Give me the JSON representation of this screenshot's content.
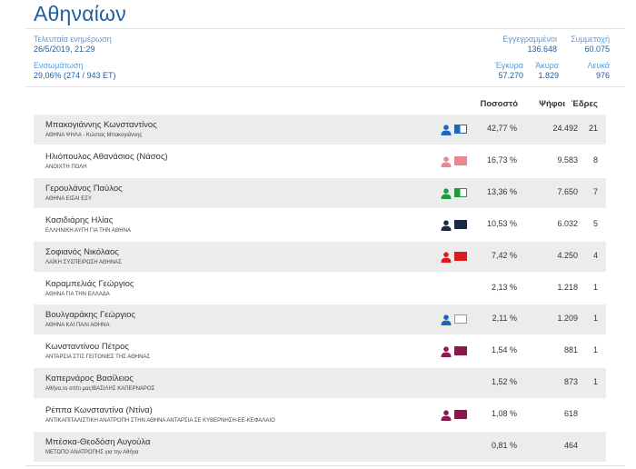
{
  "title": "Αθηναίων",
  "stats": {
    "last_update_label": "Τελευταία ενημέρωση",
    "last_update_value": "26/5/2019, 21:29",
    "integration_label": "Ενσωμάτωση",
    "integration_value": "29,06% (274 / 943 ΕΤ)",
    "registered_label": "Εγγεγραμμένοι",
    "registered_value": "136.648",
    "participation_label": "Συμμετοχή",
    "participation_value": "60.075",
    "valid_label": "Έγκυρα",
    "valid_value": "57.270",
    "invalid_label": "Άκυρα",
    "invalid_value": "1.829",
    "blank_label": "Λευκά",
    "blank_value": "976"
  },
  "table": {
    "headers": {
      "percent": "Ποσοστό",
      "votes": "Ψήφοι",
      "seats": "Έδρες"
    },
    "rows": [
      {
        "name": "Μπακογιάννης Κωνσταντίνος",
        "party": "ΑΘΗΝΑ ΨΗΛΑ - Κώστας Μπακογιάννης",
        "percent": "42,77 %",
        "votes": "24.492",
        "seats": "21",
        "icon": "person-icon",
        "color": "#1f66b8",
        "swatch": "half-blue"
      },
      {
        "name": "Ηλιόπουλος Αθανάσιος (Νάσος)",
        "party": "ΑΝΟΙΧΤΗ ΠΟΛΗ",
        "percent": "16,73 %",
        "votes": "9.583",
        "seats": "8",
        "icon": "person-icon",
        "color": "#e8888e",
        "swatch": "pink"
      },
      {
        "name": "Γερουλάνος Παύλος",
        "party": "ΑΘΗΝΑ ΕΙΣΑΙ ΕΣΥ",
        "percent": "13,36 %",
        "votes": "7.650",
        "seats": "7",
        "icon": "person-icon",
        "color": "#1f9a3e",
        "swatch": "half-green"
      },
      {
        "name": "Κασιδιάρης Ηλίας",
        "party": "ΕΛΛΗΝΙΚΗ ΑΥΓΗ ΓΙΑ ΤΗΝ ΑΘΗΝΑ",
        "percent": "10,53 %",
        "votes": "6.032",
        "seats": "5",
        "icon": "person-icon",
        "color": "#1c2a47",
        "swatch": "navy"
      },
      {
        "name": "Σοφιανός Νικόλαος",
        "party": "ΛΑΪΚΗ ΣΥΣΠΕΙΡΩΣΗ ΑΘΗΝΑΣ",
        "percent": "7,42 %",
        "votes": "4.250",
        "seats": "4",
        "icon": "person-icon",
        "color": "#d91c1c",
        "swatch": "red"
      },
      {
        "name": "Καραμπελιάς Γεώργιος",
        "party": "ΑΘΗΝΑ ΓΙΑ ΤΗΝ ΕΛΛΑΔΑ",
        "percent": "2,13 %",
        "votes": "1.218",
        "seats": "1",
        "icon": "",
        "color": "",
        "swatch": ""
      },
      {
        "name": "Βουλγαράκης Γεώργιος",
        "party": "ΑΘΗΝΑ ΚΑΙ ΠΑΛΙ ΑΘΗΝΑ",
        "percent": "2,11 %",
        "votes": "1.209",
        "seats": "1",
        "icon": "person-icon",
        "color": "#1f66b8",
        "swatch": "white"
      },
      {
        "name": "Κωνσταντίνου Πέτρος",
        "party": "ΑΝΤΑΡΣΙΑ ΣΤΙΣ ΓΕΙΤΟΝΙΕΣ ΤΗΣ ΑΘΗΝΑΣ",
        "percent": "1,54 %",
        "votes": "881",
        "seats": "1",
        "icon": "person-icon",
        "color": "#8a1a4e",
        "swatch": "purple"
      },
      {
        "name": "Καπερνάρος Βασίλειος",
        "party": "Αθήνα,το σπίτι μας!ΒΑΣΙΛΗΣ ΚΑΠΕΡΝΑΡΟΣ",
        "percent": "1,52 %",
        "votes": "873",
        "seats": "1",
        "icon": "",
        "color": "",
        "swatch": ""
      },
      {
        "name": "Ρέππα Κωνσταντίνα (Ντίνα)",
        "party": "ΑΝΤΙΚΑΠΙΤΑΛΙΣΤΙΚΗ ΑΝΑΤΡΟΠΗ ΣΤΗΝ ΑΘΗΝΑ ΑΝΤΑΡΣΙΑ ΣΕ ΚΥΒΕΡΝΗΣΗ-ΕΕ-ΚΕΦΑΛΑΙΟ",
        "percent": "1,08 %",
        "votes": "618",
        "seats": "",
        "icon": "person-icon",
        "color": "#8a1a4e",
        "swatch": "purple"
      },
      {
        "name": "Μπέσκα-Θεοδόση Αυγούλα",
        "party": "ΜΕΤΩΠΟ ΑΝΑΤΡΟΠΗΣ για την Αθήνα",
        "percent": "0,81 %",
        "votes": "464",
        "seats": "",
        "icon": "",
        "color": "",
        "swatch": ""
      }
    ]
  }
}
